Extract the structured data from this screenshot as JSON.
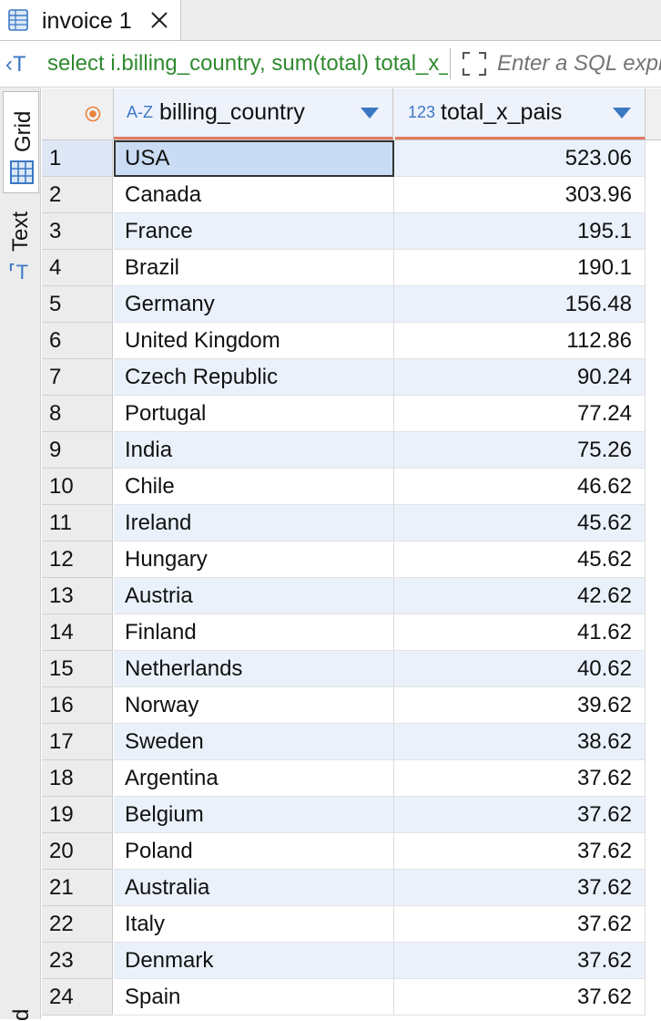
{
  "tab": {
    "label": "invoice 1"
  },
  "query": {
    "text": "select i.billing_country, sum(total) total_x_pais",
    "placeholder": "Enter a SQL expression to filter results"
  },
  "side": {
    "grid_label": "Grid",
    "text_label": "Text",
    "bottom_label": "d"
  },
  "columns": {
    "country": {
      "type": "A-Z",
      "name": "billing_country"
    },
    "total": {
      "type": "123",
      "name": "total_x_pais"
    }
  },
  "rows": [
    {
      "n": "1",
      "country": "USA",
      "total": "523.06"
    },
    {
      "n": "2",
      "country": "Canada",
      "total": "303.96"
    },
    {
      "n": "3",
      "country": "France",
      "total": "195.1"
    },
    {
      "n": "4",
      "country": "Brazil",
      "total": "190.1"
    },
    {
      "n": "5",
      "country": "Germany",
      "total": "156.48"
    },
    {
      "n": "6",
      "country": "United Kingdom",
      "total": "112.86"
    },
    {
      "n": "7",
      "country": "Czech Republic",
      "total": "90.24"
    },
    {
      "n": "8",
      "country": "Portugal",
      "total": "77.24"
    },
    {
      "n": "9",
      "country": "India",
      "total": "75.26"
    },
    {
      "n": "10",
      "country": "Chile",
      "total": "46.62"
    },
    {
      "n": "11",
      "country": "Ireland",
      "total": "45.62"
    },
    {
      "n": "12",
      "country": "Hungary",
      "total": "45.62"
    },
    {
      "n": "13",
      "country": "Austria",
      "total": "42.62"
    },
    {
      "n": "14",
      "country": "Finland",
      "total": "41.62"
    },
    {
      "n": "15",
      "country": "Netherlands",
      "total": "40.62"
    },
    {
      "n": "16",
      "country": "Norway",
      "total": "39.62"
    },
    {
      "n": "17",
      "country": "Sweden",
      "total": "38.62"
    },
    {
      "n": "18",
      "country": "Argentina",
      "total": "37.62"
    },
    {
      "n": "19",
      "country": "Belgium",
      "total": "37.62"
    },
    {
      "n": "20",
      "country": "Poland",
      "total": "37.62"
    },
    {
      "n": "21",
      "country": "Australia",
      "total": "37.62"
    },
    {
      "n": "22",
      "country": "Italy",
      "total": "37.62"
    },
    {
      "n": "23",
      "country": "Denmark",
      "total": "37.62"
    },
    {
      "n": "24",
      "country": "Spain",
      "total": "37.62"
    }
  ],
  "colors": {
    "accent": "#3b78c4",
    "query_text": "#2f8a2f",
    "header_underline": "#e07a5f",
    "row_alt": "#eaf1fb",
    "selection": "#c9dcf4"
  }
}
